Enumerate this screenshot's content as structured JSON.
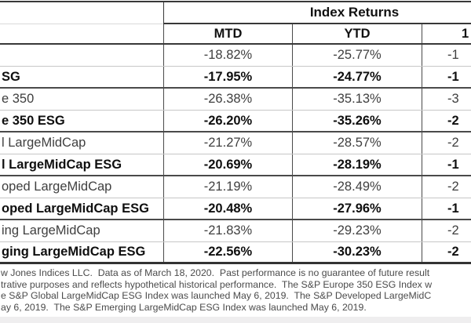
{
  "table": {
    "group_header": "Index Returns",
    "columns": {
      "mtd": "MTD",
      "ytd": "YTD",
      "third": "1"
    },
    "rows": [
      {
        "label": "",
        "mtd": "-18.82%",
        "ytd": "-25.77%",
        "third": "-1",
        "bold": false
      },
      {
        "label": "SG",
        "mtd": "-17.95%",
        "ytd": "-24.77%",
        "third": "-1",
        "bold": true
      },
      {
        "label": "e 350",
        "mtd": "-26.38%",
        "ytd": "-35.13%",
        "third": "-3",
        "bold": false
      },
      {
        "label": "e 350 ESG",
        "mtd": "-26.20%",
        "ytd": "-35.26%",
        "third": "-2",
        "bold": true
      },
      {
        "label": "l LargeMidCap",
        "mtd": "-21.27%",
        "ytd": "-28.57%",
        "third": "-2",
        "bold": false
      },
      {
        "label": "l LargeMidCap ESG",
        "mtd": "-20.69%",
        "ytd": "-28.19%",
        "third": "-1",
        "bold": true
      },
      {
        "label": "oped LargeMidCap",
        "mtd": "-21.19%",
        "ytd": "-28.49%",
        "third": "-2",
        "bold": false
      },
      {
        "label": "oped LargeMidCap ESG",
        "mtd": "-20.48%",
        "ytd": "-27.96%",
        "third": "-1",
        "bold": true
      },
      {
        "label": "ing LargeMidCap",
        "mtd": "-21.83%",
        "ytd": "-29.23%",
        "third": "-2",
        "bold": false
      },
      {
        "label": "ging LargeMidCap ESG",
        "mtd": "-22.56%",
        "ytd": "-30.23%",
        "third": "-2",
        "bold": true
      }
    ]
  },
  "footnote": {
    "lines": [
      "w Jones Indices LLC.  Data as of March 18, 2020.  Past performance is no guarantee of future result",
      "trative purposes and reflects hypothetical historical performance.  The S&P Europe 350 ESG Index w",
      "e S&P Global LargeMidCap ESG Index was launched May 6, 2019.  The S&P Developed LargeMidC",
      "ay 6, 2019.  The S&P Emerging LargeMidCap ESG Index was launched May 6, 2019."
    ]
  },
  "colors": {
    "background": "#ffffff",
    "dark_border": "#383838",
    "light_border": "#c6c6c6",
    "regular_text": "#3f3f3f",
    "bold_text": "#0f0f0f",
    "footnote_text": "#4b4b4b"
  }
}
